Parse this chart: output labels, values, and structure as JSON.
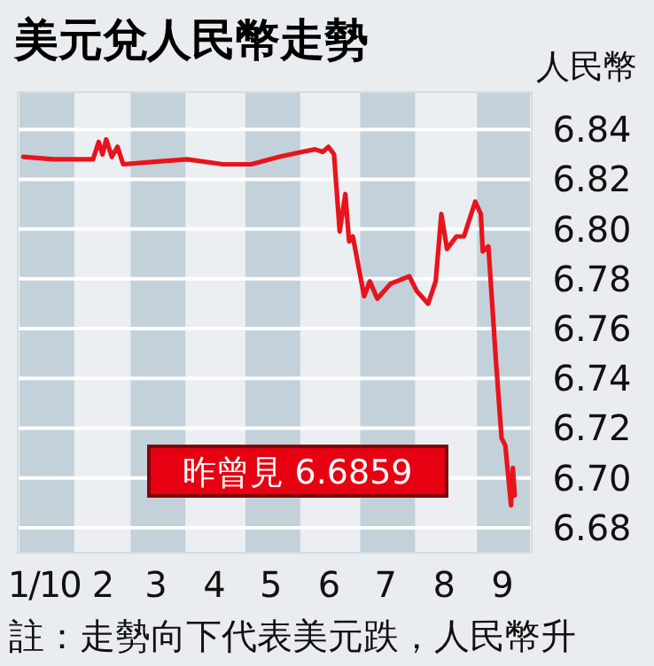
{
  "chart_data": {
    "type": "line",
    "title": "美元兌人民幣走勢",
    "ylabel": "人民幣",
    "x": [
      "2010-01-04",
      "2010-01-20",
      "2010-02-10",
      "2010-02-13",
      "2010-02-15",
      "2010-02-17",
      "2010-02-20",
      "2010-02-23",
      "2010-02-26",
      "2010-03-15",
      "2010-04-01",
      "2010-04-20",
      "2010-05-05",
      "2010-05-20",
      "2010-06-01",
      "2010-06-08",
      "2010-06-12",
      "2010-06-15",
      "2010-06-18",
      "2010-06-21",
      "2010-06-24",
      "2010-06-26",
      "2010-06-28",
      "2010-07-04",
      "2010-07-07",
      "2010-07-11",
      "2010-07-18",
      "2010-07-28",
      "2010-08-01",
      "2010-08-07",
      "2010-08-11",
      "2010-08-14",
      "2010-08-17",
      "2010-08-22",
      "2010-08-26",
      "2010-09-01",
      "2010-09-04",
      "2010-09-05",
      "2010-09-08",
      "2010-09-12",
      "2010-09-15",
      "2010-09-17",
      "2010-09-20",
      "2010-09-21",
      "2010-09-22"
    ],
    "series": [
      {
        "color": "#e8141c",
        "values": [
          6.829,
          6.828,
          6.828,
          6.835,
          6.83,
          6.836,
          6.829,
          6.833,
          6.826,
          6.827,
          6.828,
          6.826,
          6.826,
          6.829,
          6.831,
          6.832,
          6.831,
          6.833,
          6.83,
          6.799,
          6.814,
          6.795,
          6.797,
          6.773,
          6.779,
          6.772,
          6.778,
          6.781,
          6.775,
          6.77,
          6.779,
          6.806,
          6.792,
          6.797,
          6.797,
          6.811,
          6.806,
          6.791,
          6.793,
          6.747,
          6.716,
          6.713,
          6.689,
          6.704,
          6.693
        ]
      }
    ],
    "xlim": [
      "2010-01-01",
      "2010-10-01"
    ],
    "xticks": [
      {
        "value": "2010-01-15",
        "label": "1/10"
      },
      {
        "value": "2010-02-15",
        "label": "2"
      },
      {
        "value": "2010-03-15",
        "label": "3"
      },
      {
        "value": "2010-04-15",
        "label": "4"
      },
      {
        "value": "2010-05-15",
        "label": "5"
      },
      {
        "value": "2010-06-15",
        "label": "6"
      },
      {
        "value": "2010-07-15",
        "label": "7"
      },
      {
        "value": "2010-08-15",
        "label": "8"
      },
      {
        "value": "2010-09-15",
        "label": "9"
      }
    ],
    "ylim": [
      6.67,
      6.855
    ],
    "yticks": [
      6.68,
      {
        "value": 6.7,
        "label": "6.70"
      },
      6.72,
      6.74,
      6.76,
      6.78,
      {
        "value": 6.8,
        "label": "6.80"
      },
      6.82,
      6.84
    ],
    "grid": "y",
    "bands": [
      {
        "axis": "x",
        "from": "2010-01-01",
        "to": "2010-02-01",
        "color": "#c3d2da"
      },
      {
        "axis": "x",
        "from": "2010-03-01",
        "to": "2010-04-01",
        "color": "#c3d2da"
      },
      {
        "axis": "x",
        "from": "2010-05-01",
        "to": "2010-06-01",
        "color": "#c3d2da"
      },
      {
        "axis": "x",
        "from": "2010-07-01",
        "to": "2010-08-01",
        "color": "#c3d2da"
      },
      {
        "axis": "x",
        "from": "2010-09-01",
        "to": "2010-10-01",
        "color": "#c3d2da"
      }
    ],
    "annotations": [
      "昨曾見 6.6859",
      "註：走勢向下代表美元跌，人民幣升"
    ]
  }
}
